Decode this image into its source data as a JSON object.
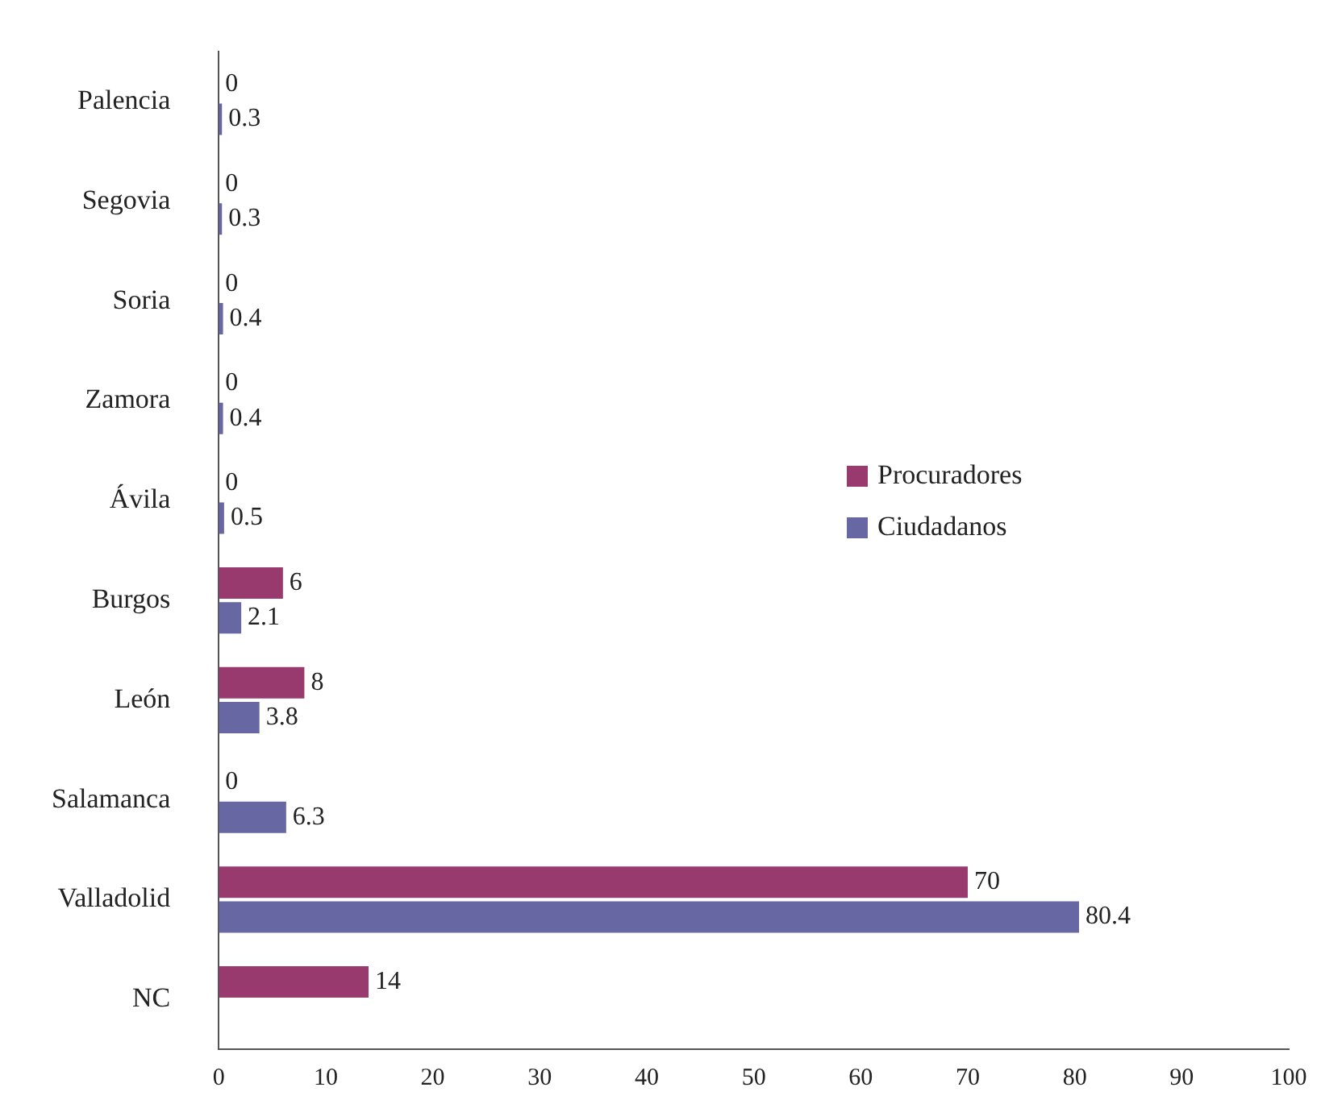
{
  "chart_data": {
    "type": "bar",
    "orientation": "horizontal",
    "categories": [
      "Palencia",
      "Segovia",
      "Soria",
      "Zamora",
      "Ávila",
      "Burgos",
      "León",
      "Salamanca",
      "Valladolid",
      "NC"
    ],
    "series": [
      {
        "name": "Procuradores",
        "color": "#993a6e",
        "values": [
          0,
          0,
          0,
          0,
          0,
          6,
          8,
          0,
          70,
          14
        ]
      },
      {
        "name": "Ciudadanos",
        "color": "#6667a3",
        "values": [
          0.3,
          0.3,
          0.4,
          0.4,
          0.5,
          2.1,
          3.8,
          6.3,
          80.4,
          null
        ]
      }
    ],
    "xlim": [
      0,
      100
    ],
    "xticks": [
      0,
      10,
      20,
      30,
      40,
      50,
      60,
      70,
      80,
      90,
      100
    ],
    "data_labels": true,
    "legend": "right",
    "grid": false
  }
}
